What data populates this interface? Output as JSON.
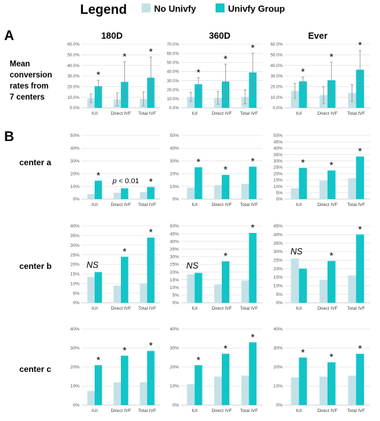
{
  "legend": {
    "title": "Legend",
    "items": [
      {
        "name": "No Univfy",
        "color": "#c5e1e8"
      },
      {
        "name": "Univfy Group",
        "color": "#13c4c8"
      }
    ]
  },
  "panel_a": {
    "letter": "A",
    "row_label": [
      "Mean",
      "conversion",
      "rates from",
      "7 centers"
    ]
  },
  "panel_b": {
    "letter": "B",
    "rows": [
      "center a",
      "center b",
      "center c"
    ]
  },
  "columns": [
    "180D",
    "360D",
    "Ever"
  ],
  "annotations": {
    "sig": "*",
    "ns": "NS",
    "p": "p",
    "p_rest": " < 0.01"
  },
  "chart_data": [
    {
      "id": "A-180D",
      "type": "bar",
      "categories": [
        "IUI",
        "Direct IVF",
        "Total IVF"
      ],
      "ytick_labels": [
        "0.0%",
        "10.0%",
        "20.0%",
        "30.0%",
        "40.0%",
        "50.0%",
        "60.0%"
      ],
      "ylim": [
        0,
        60
      ],
      "series": [
        {
          "name": "No Univfy",
          "values": [
            9,
            8,
            8.5
          ],
          "err": [
            4,
            6,
            6.5
          ]
        },
        {
          "name": "Univfy Group",
          "values": [
            20.5,
            24.5,
            28.5
          ],
          "err": [
            5.5,
            19,
            19.5
          ]
        }
      ],
      "marks": [
        "*",
        "*",
        "*"
      ]
    },
    {
      "id": "A-360D",
      "type": "bar",
      "categories": [
        "IUI",
        "Direct IVF",
        "Total IVF"
      ],
      "ytick_labels": [
        "0.0%",
        "10.0%",
        "20.0%",
        "30.0%",
        "40.0%",
        "50.0%",
        "60.0%",
        "70.0%"
      ],
      "ylim": [
        0,
        70
      ],
      "series": [
        {
          "name": "No Univfy",
          "values": [
            12,
            11,
            12
          ],
          "err": [
            5,
            7,
            7.5
          ]
        },
        {
          "name": "Univfy Group",
          "values": [
            26,
            29,
            39
          ],
          "err": [
            7,
            19,
            21
          ]
        }
      ],
      "marks": [
        "*",
        "*",
        "*"
      ]
    },
    {
      "id": "A-Ever",
      "type": "bar",
      "categories": [
        "IUI",
        "Direct IVF",
        "Total IVF"
      ],
      "ytick_labels": [
        "0.0%",
        "10.0%",
        "20.0%",
        "30.0%",
        "40.0%",
        "50.0%",
        "60.0%"
      ],
      "ylim": [
        0,
        60
      ],
      "series": [
        {
          "name": "No Univfy",
          "values": [
            16,
            12,
            14
          ],
          "err": [
            7,
            8,
            8
          ]
        },
        {
          "name": "Univfy Group",
          "values": [
            25,
            26,
            36
          ],
          "err": [
            4,
            17,
            18
          ]
        }
      ],
      "marks": [
        "*",
        "*",
        "*"
      ]
    },
    {
      "id": "a-180D",
      "type": "bar",
      "categories": [
        "IUI",
        "Direct IVF",
        "Total IVF"
      ],
      "ytick_labels": [
        "0%",
        "10%",
        "20%",
        "30%",
        "40%",
        "50%"
      ],
      "ylim": [
        0,
        50
      ],
      "series": [
        {
          "name": "No Univfy",
          "values": [
            4,
            5,
            5.5
          ]
        },
        {
          "name": "Univfy Group",
          "values": [
            14.5,
            8.5,
            9.5
          ]
        }
      ],
      "marks": [
        "*",
        "",
        "*"
      ],
      "note": "p < 0.01"
    },
    {
      "id": "a-360D",
      "type": "bar",
      "categories": [
        "IUI",
        "Direct IVF",
        "Total IVF"
      ],
      "ytick_labels": [
        "0%",
        "10%",
        "20%",
        "30%",
        "40%",
        "50%"
      ],
      "ylim": [
        0,
        50
      ],
      "series": [
        {
          "name": "No Univfy",
          "values": [
            9,
            11,
            12
          ]
        },
        {
          "name": "Univfy Group",
          "values": [
            25,
            19,
            25.5
          ]
        }
      ],
      "marks": [
        "*",
        "*",
        "*"
      ]
    },
    {
      "id": "a-Ever",
      "type": "bar",
      "categories": [
        "IUI",
        "Direct IVF",
        "Total IVF"
      ],
      "ytick_labels": [
        "0%",
        "5%",
        "10%",
        "15%",
        "20%",
        "25%",
        "30%",
        "35%",
        "40%",
        "45%",
        "50%"
      ],
      "ylim": [
        0,
        50
      ],
      "series": [
        {
          "name": "No Univfy",
          "values": [
            8.5,
            14.5,
            16.5
          ]
        },
        {
          "name": "Univfy Group",
          "values": [
            24.5,
            22.5,
            33.5
          ]
        }
      ],
      "marks": [
        "*",
        "*",
        "*"
      ]
    },
    {
      "id": "b-180D",
      "type": "bar",
      "categories": [
        "IUI",
        "Direct IVF",
        "Total IVF"
      ],
      "ytick_labels": [
        "0%",
        "5%",
        "10%",
        "15%",
        "20%",
        "25%",
        "30%",
        "35%",
        "40%"
      ],
      "ylim": [
        0,
        40
      ],
      "series": [
        {
          "name": "No Univfy",
          "values": [
            13.5,
            9,
            10
          ]
        },
        {
          "name": "Univfy Group",
          "values": [
            16,
            24,
            34
          ]
        }
      ],
      "marks": [
        "NS",
        "*",
        "*"
      ]
    },
    {
      "id": "b-360D",
      "type": "bar",
      "categories": [
        "IUI",
        "Direct IVF",
        "Total IVF"
      ],
      "ytick_labels": [
        "0%",
        "5%",
        "10%",
        "15%",
        "20%",
        "25%",
        "30%",
        "35%",
        "40%",
        "45%",
        "50%"
      ],
      "ylim": [
        0,
        50
      ],
      "series": [
        {
          "name": "No Univfy",
          "values": [
            18.5,
            12,
            14.5
          ]
        },
        {
          "name": "Univfy Group",
          "values": [
            19.5,
            27,
            45.5
          ]
        }
      ],
      "marks": [
        "NS",
        "*",
        "*"
      ]
    },
    {
      "id": "b-Ever",
      "type": "bar",
      "categories": [
        "IUI",
        "Direct IVF",
        "Total IVF"
      ],
      "ytick_labels": [
        "0%",
        "5%",
        "10%",
        "15%",
        "20%",
        "25%",
        "30%",
        "35%",
        "40%",
        "45%"
      ],
      "ylim": [
        0,
        45
      ],
      "series": [
        {
          "name": "No Univfy",
          "values": [
            26,
            13.5,
            16
          ]
        },
        {
          "name": "Univfy Group",
          "values": [
            20,
            24.5,
            40
          ]
        }
      ],
      "marks": [
        "NS",
        "*",
        "*"
      ]
    },
    {
      "id": "c-180D",
      "type": "bar",
      "categories": [
        "IUI",
        "Direct IVF",
        "Total IVF"
      ],
      "ytick_labels": [
        "0%",
        "10%",
        "20%",
        "30%",
        "40%"
      ],
      "ylim": [
        0,
        40
      ],
      "series": [
        {
          "name": "No Univfy",
          "values": [
            7.5,
            12,
            12
          ]
        },
        {
          "name": "Univfy Group",
          "values": [
            21,
            26,
            28.5
          ]
        }
      ],
      "marks": [
        "*",
        "*",
        "*"
      ]
    },
    {
      "id": "c-360D",
      "type": "bar",
      "categories": [
        "IUI",
        "Direct IVF",
        "Total IVF"
      ],
      "ytick_labels": [
        "0%",
        "10%",
        "20%",
        "30%",
        "40%"
      ],
      "ylim": [
        0,
        40
      ],
      "series": [
        {
          "name": "No Univfy",
          "values": [
            11,
            15,
            15.5
          ]
        },
        {
          "name": "Univfy Group",
          "values": [
            21,
            27,
            33
          ]
        }
      ],
      "marks": [
        "*",
        "*",
        "*"
      ]
    },
    {
      "id": "c-Ever",
      "type": "bar",
      "categories": [
        "IUI",
        "Direct IVF",
        "Total IVF"
      ],
      "ytick_labels": [
        "0%",
        "10%",
        "20%",
        "30%",
        "40%"
      ],
      "ylim": [
        0,
        40
      ],
      "series": [
        {
          "name": "No Univfy",
          "values": [
            14.5,
            15,
            15.5
          ]
        },
        {
          "name": "Univfy Group",
          "values": [
            25,
            22.5,
            27
          ]
        }
      ],
      "marks": [
        "*",
        "*",
        "*"
      ]
    }
  ]
}
